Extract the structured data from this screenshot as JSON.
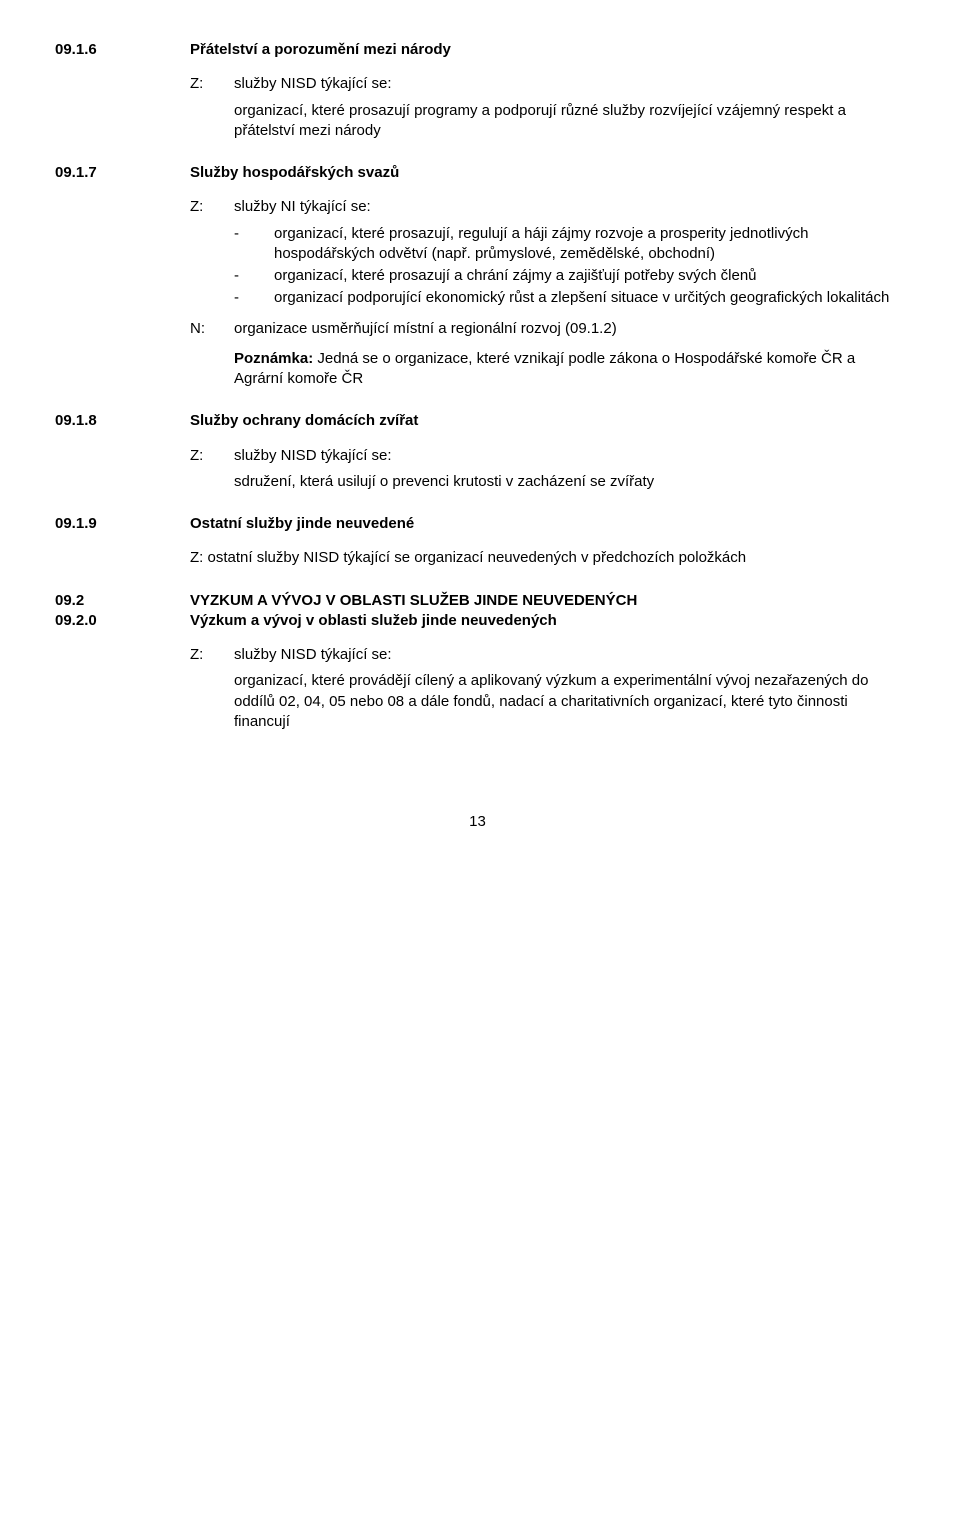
{
  "sections": {
    "s0916": {
      "num": "09.1.6",
      "title": "Přátelství a porozumění mezi národy",
      "z_label": "Z:",
      "z_text": "služby NISD týkající se:",
      "body": "organizací, které prosazují programy a podporují různé služby rozvíjející vzájemný respekt a přátelství mezi národy"
    },
    "s0917": {
      "num": "09.1.7",
      "title": "Služby hospodářských svazů",
      "z_label": "Z:",
      "z_text": "služby NI týkající se:",
      "bullets": [
        "organizací, které prosazují, regulují a háji zájmy rozvoje a prosperity jednotlivých hospodářských odvětví (např. průmyslové, zemědělské, obchodní)",
        "organizací, které prosazují a chrání zájmy a zajišťují potřeby svých členů",
        "organizací podporující ekonomický růst a zlepšení situace v určitých geografických lokalitách"
      ],
      "n_label": "N:",
      "n_text": "organizace usměrňující místní a regionální rozvoj (09.1.2)",
      "note_prefix": "Poznámka:",
      "note_text": " Jedná se o organizace, které vznikají podle zákona o Hospodářské komoře ČR a Agrární komoře ČR"
    },
    "s0918": {
      "num": "09.1.8",
      "title": "Služby ochrany domácích zvířat",
      "z_label": "Z:",
      "z_text": "služby NISD týkající se:",
      "body": "sdružení, která usilují o prevenci krutosti v zacházení se zvířaty"
    },
    "s0919": {
      "num": "09.1.9",
      "title": "Ostatní služby jinde neuvedené",
      "z_inline": "Z: ostatní služby NISD týkající se organizací neuvedených v předchozích položkách"
    },
    "s092": {
      "num1": "09.2",
      "title1": "VYZKUM A VÝVOJ V OBLASTI SLUŽEB JINDE NEUVEDENÝCH",
      "num2": "09.2.0",
      "title2": " Výzkum a vývoj v oblasti služeb jinde neuvedených",
      "z_label": "Z:",
      "z_text": "služby NISD týkající se:",
      "body": "organizací, které provádějí cílený a aplikovaný výzkum a experimentální vývoj nezařazených do oddílů 02, 04, 05 nebo 08 a dále fondů, nadací a charitativních organizací, které tyto činnosti financují"
    }
  },
  "page_number": "13"
}
